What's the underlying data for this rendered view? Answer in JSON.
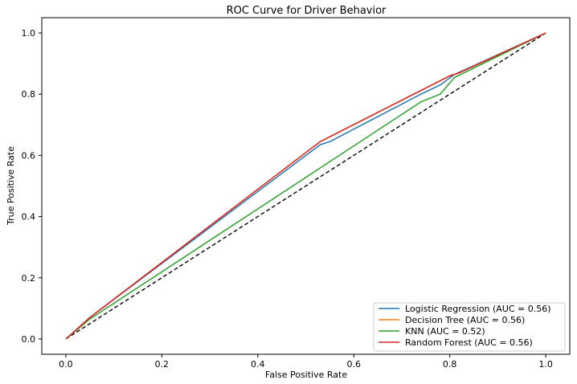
{
  "chart_data": {
    "type": "line",
    "title": "ROC Curve for Driver Behavior",
    "xlabel": "False Positive Rate",
    "ylabel": "True Positive Rate",
    "xlim": [
      -0.05,
      1.05
    ],
    "ylim": [
      -0.05,
      1.05
    ],
    "xticks": [
      0.0,
      0.2,
      0.4,
      0.6,
      0.8,
      1.0
    ],
    "yticks": [
      0.0,
      0.2,
      0.4,
      0.6,
      0.8,
      1.0
    ],
    "xtick_labels": [
      "0.0",
      "0.2",
      "0.4",
      "0.6",
      "0.8",
      "1.0"
    ],
    "ytick_labels": [
      "0.0",
      "0.2",
      "0.4",
      "0.6",
      "0.8",
      "1.0"
    ],
    "grid": false,
    "legend_position": "lower-right",
    "diagonal": {
      "x": [
        0,
        1
      ],
      "y": [
        0,
        1
      ],
      "style": "dashed",
      "color": "#000000"
    },
    "series": [
      {
        "name": "Logistic Regression (AUC = 0.56)",
        "color": "#1f77b4",
        "x": [
          0.0,
          0.05,
          0.53,
          0.54,
          0.55,
          0.74,
          0.78,
          0.81,
          1.0
        ],
        "y": [
          0.0,
          0.07,
          0.635,
          0.64,
          0.645,
          0.8,
          0.83,
          0.865,
          1.0
        ]
      },
      {
        "name": "Decision Tree (AUC = 0.56)",
        "color": "#ff7f0e",
        "x": [
          0.0,
          0.05,
          0.53,
          0.8,
          0.82,
          1.0
        ],
        "y": [
          0.0,
          0.07,
          0.645,
          0.86,
          0.87,
          1.0
        ]
      },
      {
        "name": "KNN (AUC = 0.52)",
        "color": "#2ca02c",
        "x": [
          0.0,
          0.05,
          0.74,
          0.78,
          0.81,
          1.0
        ],
        "y": [
          0.0,
          0.065,
          0.775,
          0.8,
          0.855,
          1.0
        ]
      },
      {
        "name": "Random Forest (AUC = 0.56)",
        "color": "#d62728",
        "x": [
          0.0,
          0.05,
          0.53,
          0.8,
          0.82,
          1.0
        ],
        "y": [
          0.0,
          0.07,
          0.645,
          0.86,
          0.87,
          1.0
        ]
      }
    ]
  }
}
